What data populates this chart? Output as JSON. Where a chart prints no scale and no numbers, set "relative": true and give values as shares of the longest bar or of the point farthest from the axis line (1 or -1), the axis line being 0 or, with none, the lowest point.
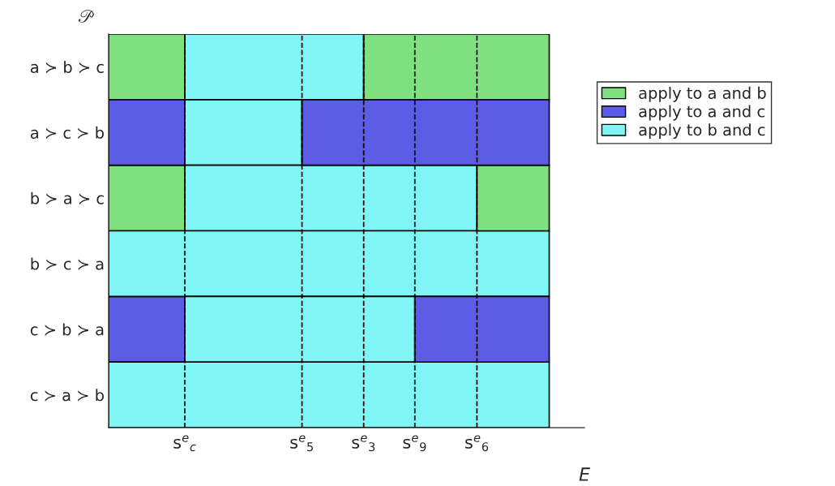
{
  "chart_data": {
    "type": "bar",
    "orientation": "horizontal",
    "relative": true,
    "categories": [
      "a ≻ b ≻ c",
      "a ≻ c ≻ b",
      "b ≻ a ≻ c",
      "b ≻ c ≻ a",
      "c ≻ b ≻ a",
      "c ≻ a ≻ b"
    ],
    "xlabel": "E",
    "ylabel": "𝒫",
    "legend": "right",
    "grid": false,
    "stacked": true,
    "series": [
      {
        "name": "apply to a and b",
        "color": "#7fe07f",
        "values": [
          0.173,
          null,
          0.173,
          null,
          null,
          null
        ]
      },
      {
        "name": "apply to a and c",
        "color": "#5c5ce6",
        "values": [
          null,
          0.173,
          null,
          null,
          0.173,
          null
        ]
      },
      {
        "name": "apply to b and c",
        "color": "#7ff5f5",
        "values": [
          0.406,
          0.266,
          0.663,
          1,
          0.522,
          1
        ]
      },
      {
        "color": "#7fe07f",
        "values": [
          0.421,
          null,
          0.164,
          null,
          null,
          null
        ]
      },
      {
        "color": "#5c5ce6",
        "values": [
          null,
          0.561,
          null,
          null,
          0.305,
          null
        ]
      }
    ],
    "ref_lines": [
      {
        "axis": "x",
        "value": 0.173,
        "label": "s$^{e}$$_{c}$",
        "line_style": "dashed",
        "color": "#000000"
      },
      {
        "axis": "x",
        "value": 0.439,
        "label": "s$^{e}$$_{5}$",
        "line_style": "dashed",
        "color": "#000000"
      },
      {
        "axis": "x",
        "value": 0.579,
        "label": "s$^{e}$$_{3}$",
        "line_style": "dashed",
        "color": "#000000"
      },
      {
        "axis": "x",
        "value": 0.695,
        "label": "s$^{e}$$_{9}$",
        "line_style": "dashed",
        "color": "#000000"
      },
      {
        "axis": "x",
        "value": 0.836,
        "label": "s$^{e}$$_{6}$",
        "line_style": "dashed",
        "color": "#000000"
      }
    ]
  }
}
